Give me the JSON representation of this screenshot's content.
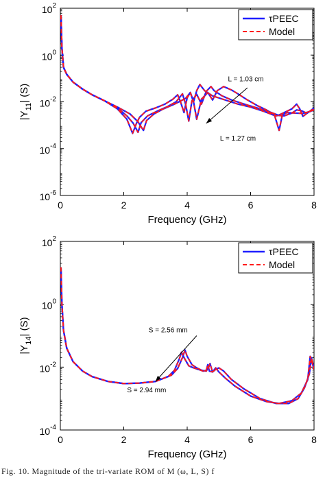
{
  "colors": {
    "tpeec": "#1f1fff",
    "model": "#ff1a1a",
    "axis": "#000000",
    "annotation": "#000000"
  },
  "caption": "Fig. 10. Magnitude of the tri-variate ROM of M (ω, L, S) f",
  "chart_data": [
    {
      "type": "line",
      "title": "",
      "xlabel": "Frequency (GHz)",
      "ylabel": "|Y11| (S)",
      "ylabel_main": "|Y",
      "ylabel_sub": "11",
      "ylabel_tail": "| (S)",
      "xlim": [
        0,
        8
      ],
      "ylim": [
        1e-06,
        100
      ],
      "yscale": "log",
      "xticks": [
        "0",
        "2",
        "4",
        "6",
        "8"
      ],
      "yticks": [
        {
          "mantissa": "10",
          "exponent": "2",
          "value": 100
        },
        {
          "mantissa": "10",
          "exponent": "0",
          "value": 1
        },
        {
          "mantissa": "10",
          "exponent": "-2",
          "value": 0.01
        },
        {
          "mantissa": "10",
          "exponent": "-4",
          "value": 0.0001
        },
        {
          "mantissa": "10",
          "exponent": "-6",
          "value": 1e-06
        }
      ],
      "grid": false,
      "legend": {
        "position": "top-right",
        "entries": [
          "τPEEC",
          "Model"
        ]
      },
      "annotations": [
        {
          "text": "L = 1.03 cm",
          "x": 5.85,
          "y": 0.075
        },
        {
          "text": "L = 1.27 cm",
          "x": 5.6,
          "y": 0.00022
        }
      ],
      "arrow": {
        "from": [
          5.9,
          0.04
        ],
        "to": [
          4.6,
          0.0012
        ]
      },
      "series": [
        {
          "name": "τPEEC",
          "style": "solid",
          "curves": [
            {
              "x": [
                0.02,
                0.05,
                0.1,
                0.2,
                0.4,
                0.7,
                1.0,
                1.4,
                1.8,
                2.1,
                2.28,
                2.4,
                2.5,
                2.7,
                3.0,
                3.3,
                3.55,
                3.7,
                3.8,
                3.9,
                4.0,
                4.1,
                4.2,
                4.3,
                4.4,
                4.55,
                4.8,
                5.2,
                5.6,
                6.0,
                6.4,
                6.7,
                6.8,
                6.85,
                7.0,
                7.3,
                7.45,
                7.55,
                7.65,
                7.8,
                8.0
              ],
              "y": [
                50,
                2,
                0.3,
                0.15,
                0.07,
                0.035,
                0.02,
                0.011,
                0.005,
                0.0018,
                0.00045,
                0.0012,
                0.0022,
                0.004,
                0.0055,
                0.008,
                0.013,
                0.02,
                0.009,
                0.0035,
                0.015,
                0.025,
                0.01,
                0.03,
                0.055,
                0.03,
                0.018,
                0.012,
                0.008,
                0.006,
                0.004,
                0.0028,
                0.0025,
                0.0026,
                0.0032,
                0.005,
                0.008,
                0.005,
                0.0024,
                0.0034,
                0.0055
              ]
            },
            {
              "x": [
                0.02,
                0.05,
                0.1,
                0.2,
                0.4,
                0.7,
                1.0,
                1.4,
                1.8,
                2.1,
                2.3,
                2.45,
                2.55,
                2.75,
                3.05,
                3.35,
                3.65,
                3.85,
                3.95,
                4.05,
                4.15,
                4.3,
                4.45,
                4.6,
                4.75,
                4.85,
                5.1,
                5.4,
                5.8,
                6.2,
                6.6,
                6.9,
                7.05,
                7.3,
                7.45,
                7.6,
                7.75,
                7.9,
                8.0
              ],
              "y": [
                50,
                2,
                0.3,
                0.15,
                0.07,
                0.035,
                0.02,
                0.011,
                0.0055,
                0.0025,
                0.0012,
                0.0005,
                0.0013,
                0.0025,
                0.004,
                0.006,
                0.01,
                0.022,
                0.008,
                0.0015,
                0.011,
                0.021,
                0.008,
                0.028,
                0.045,
                0.03,
                0.018,
                0.012,
                0.008,
                0.0055,
                0.0037,
                0.0026,
                0.0025,
                0.0033,
                0.0045,
                0.0042,
                0.0034,
                0.004,
                0.005
              ]
            },
            {
              "x": [
                0.02,
                0.05,
                0.1,
                0.2,
                0.4,
                0.7,
                1.0,
                1.4,
                1.8,
                2.2,
                2.45,
                2.62,
                2.72,
                2.95,
                3.25,
                3.6,
                3.95,
                4.1,
                4.2,
                4.3,
                4.45,
                4.65,
                4.8,
                4.95,
                5.15,
                5.4,
                5.6,
                5.9,
                6.2,
                6.5,
                6.75,
                6.9,
                7.0,
                7.15,
                7.4,
                7.65,
                7.85,
                8.0
              ],
              "y": [
                50,
                2,
                0.3,
                0.15,
                0.07,
                0.035,
                0.02,
                0.011,
                0.006,
                0.003,
                0.0014,
                0.0006,
                0.0016,
                0.003,
                0.005,
                0.008,
                0.014,
                0.025,
                0.01,
                0.0018,
                0.013,
                0.025,
                0.012,
                0.03,
                0.045,
                0.032,
                0.022,
                0.012,
                0.007,
                0.0045,
                0.0028,
                0.0006,
                0.0028,
                0.0035,
                0.0033,
                0.0032,
                0.0038,
                0.0045
              ]
            }
          ]
        },
        {
          "name": "Model",
          "style": "dashed",
          "same_as": "τPEEC"
        }
      ]
    },
    {
      "type": "line",
      "title": "",
      "xlabel": "Frequency (GHz)",
      "ylabel": "|Y14| (S)",
      "ylabel_main": "|Y",
      "ylabel_sub": "14",
      "ylabel_tail": "| (S)",
      "xlim": [
        0,
        8
      ],
      "ylim": [
        0.0001,
        100
      ],
      "yscale": "log",
      "xticks": [
        "0",
        "2",
        "4",
        "6",
        "8"
      ],
      "yticks": [
        {
          "mantissa": "10",
          "exponent": "2",
          "value": 100
        },
        {
          "mantissa": "10",
          "exponent": "0",
          "value": 1
        },
        {
          "mantissa": "10",
          "exponent": "-2",
          "value": 0.01
        },
        {
          "mantissa": "10",
          "exponent": "-4",
          "value": 0.0001
        }
      ],
      "grid": false,
      "legend": {
        "position": "top-right",
        "entries": [
          "τPEEC",
          "Model"
        ]
      },
      "annotations": [
        {
          "text": "S = 2.56 mm",
          "x": 3.4,
          "y": 0.13
        },
        {
          "text": "S = 2.94 mm",
          "x": 2.72,
          "y": 0.0016
        }
      ],
      "arrow": {
        "from": [
          4.3,
          0.1
        ],
        "to": [
          3.0,
          0.0035
        ]
      },
      "series": [
        {
          "name": "τPEEC",
          "style": "solid",
          "curves": [
            {
              "x": [
                0.02,
                0.05,
                0.1,
                0.2,
                0.4,
                0.7,
                1.0,
                1.5,
                2.0,
                2.5,
                3.0,
                3.4,
                3.6,
                3.75,
                3.82,
                3.9,
                4.05,
                4.2,
                4.35,
                4.5,
                4.6,
                4.65,
                4.7,
                4.8,
                4.9,
                5.0,
                5.2,
                5.5,
                6.0,
                6.5,
                6.9,
                7.3,
                7.6,
                7.8,
                7.88,
                7.95,
                8.0
              ],
              "y": [
                15,
                1,
                0.15,
                0.04,
                0.015,
                0.0075,
                0.005,
                0.0035,
                0.003,
                0.0031,
                0.0035,
                0.005,
                0.008,
                0.018,
                0.03,
                0.02,
                0.011,
                0.0095,
                0.0085,
                0.0075,
                0.008,
                0.012,
                0.0075,
                0.007,
                0.0095,
                0.007,
                0.0045,
                0.0025,
                0.0012,
                0.0008,
                0.0007,
                0.00085,
                0.0015,
                0.004,
                0.022,
                0.013,
                0.0085
              ]
            },
            {
              "x": [
                0.02,
                0.05,
                0.1,
                0.2,
                0.4,
                0.7,
                1.0,
                1.5,
                2.0,
                2.5,
                3.0,
                3.5,
                3.7,
                3.85,
                3.93,
                4.0,
                4.15,
                4.3,
                4.45,
                4.6,
                4.68,
                4.72,
                4.8,
                4.9,
                5.0,
                5.15,
                5.4,
                5.8,
                6.3,
                6.8,
                7.2,
                7.5,
                7.7,
                7.85,
                7.92,
                8.0
              ],
              "y": [
                15,
                1,
                0.15,
                0.04,
                0.015,
                0.0075,
                0.005,
                0.0035,
                0.003,
                0.0031,
                0.0035,
                0.0055,
                0.009,
                0.02,
                0.035,
                0.022,
                0.012,
                0.0095,
                0.008,
                0.0075,
                0.01,
                0.013,
                0.007,
                0.0085,
                0.0095,
                0.0075,
                0.004,
                0.002,
                0.001,
                0.0007,
                0.0007,
                0.001,
                0.0022,
                0.006,
                0.02,
                0.009
              ]
            }
          ]
        },
        {
          "name": "Model",
          "style": "dashed",
          "same_as": "τPEEC"
        }
      ]
    }
  ]
}
